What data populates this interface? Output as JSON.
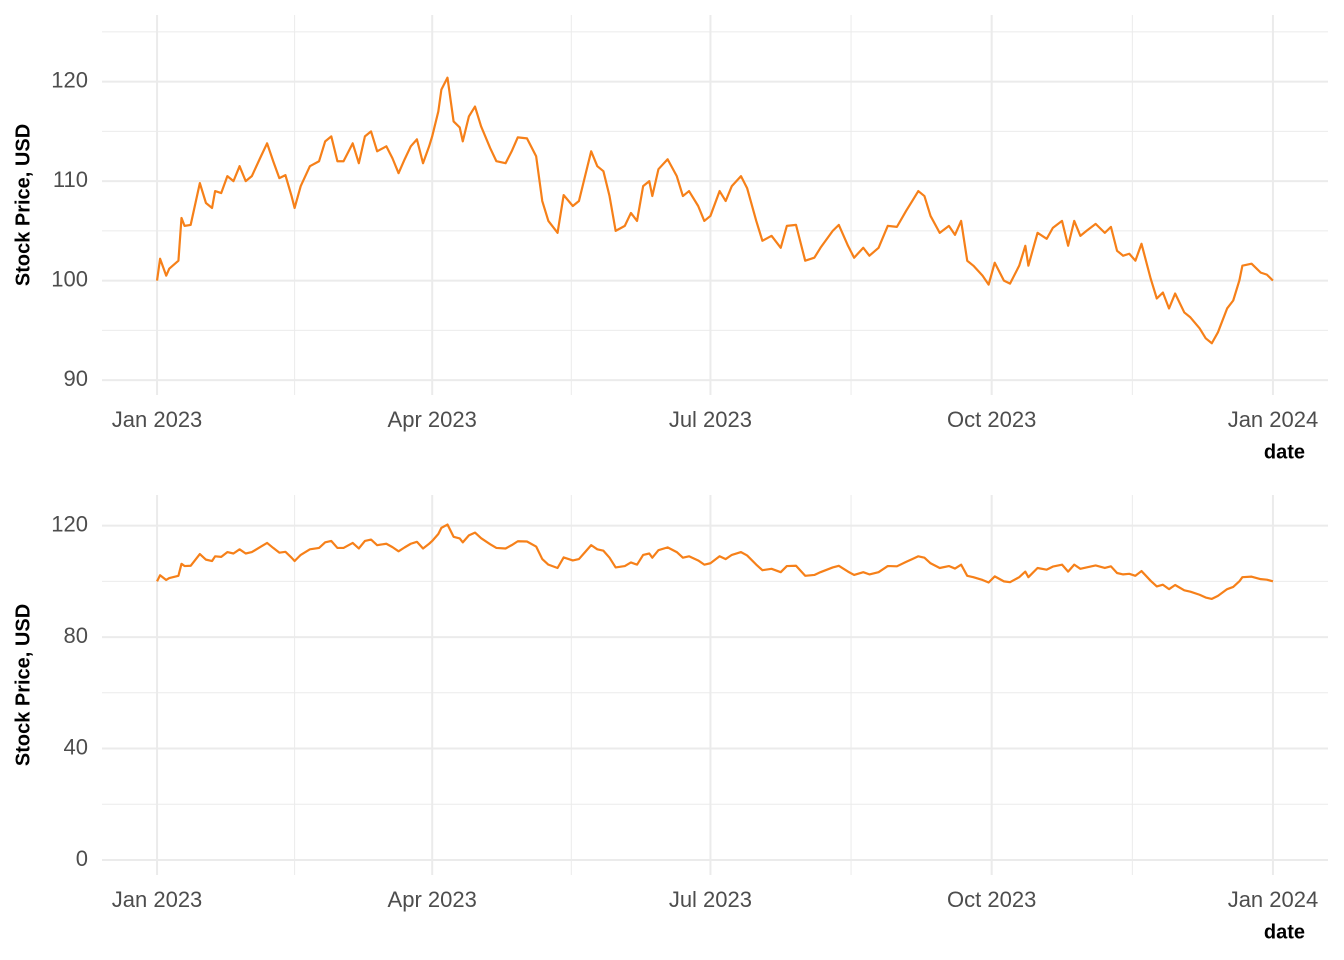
{
  "chart_data": [
    {
      "type": "line",
      "y_label": "Stock Price, USD",
      "x_label": "date",
      "x": [
        0,
        1,
        3,
        4,
        7,
        8,
        9,
        11,
        14,
        16,
        18,
        19,
        21,
        23,
        25,
        27,
        29,
        31,
        34,
        36,
        38,
        40,
        42,
        44,
        45,
        47,
        50,
        53,
        55,
        57,
        59,
        61,
        64,
        66,
        68,
        70,
        72,
        75,
        77,
        79,
        81,
        83,
        85,
        87,
        89,
        90,
        92,
        93,
        95,
        97,
        99,
        100,
        102,
        104,
        106,
        109,
        111,
        114,
        116,
        118,
        121,
        124,
        126,
        128,
        131,
        133,
        136,
        138,
        140,
        142,
        144,
        146,
        148,
        150,
        153,
        155,
        157,
        159,
        161,
        162,
        164,
        167,
        170,
        172,
        174,
        177,
        179,
        181,
        184,
        186,
        188,
        191,
        193,
        196,
        198,
        201,
        204,
        206,
        209,
        212,
        215,
        217,
        221,
        223,
        226,
        228,
        231,
        233,
        236,
        239,
        242,
        245,
        247,
        249,
        251,
        253,
        256,
        259,
        261,
        263,
        265,
        267,
        270,
        272,
        274,
        277,
        279,
        282,
        284,
        285,
        288,
        291,
        293,
        296,
        298,
        300,
        302,
        304,
        307,
        310,
        312,
        314,
        316,
        318,
        320,
        322,
        325,
        327,
        329,
        331,
        333,
        336,
        338,
        341,
        343,
        345,
        347,
        350,
        352,
        354,
        355,
        358,
        361,
        363,
        365
      ],
      "series": [
        {
          "name": "Stock Price",
          "color": "#f68019",
          "values": [
            100,
            102.2,
            100.5,
            101.2,
            102,
            106.3,
            105.5,
            105.6,
            109.8,
            107.8,
            107.3,
            109,
            108.8,
            110.5,
            110,
            111.5,
            110,
            110.5,
            112.5,
            113.8,
            112,
            110.3,
            110.6,
            108.5,
            107.3,
            109.5,
            111.5,
            112,
            114,
            114.5,
            112,
            112,
            113.8,
            111.8,
            114.5,
            115,
            113,
            113.5,
            112.3,
            110.8,
            112.2,
            113.5,
            114.2,
            111.8,
            113.5,
            114.5,
            117,
            119.2,
            120.4,
            116,
            115.4,
            114,
            116.5,
            117.5,
            115.5,
            113.3,
            112,
            111.8,
            113,
            114.4,
            114.3,
            112.5,
            108,
            106,
            104.8,
            108.6,
            107.5,
            108,
            110.5,
            113,
            111.5,
            111,
            108.5,
            105,
            105.5,
            106.8,
            106,
            109.5,
            110,
            108.5,
            111.2,
            112.2,
            110.5,
            108.5,
            109,
            107.5,
            106,
            106.5,
            109,
            108,
            109.5,
            110.5,
            109.3,
            106,
            104,
            104.5,
            103.3,
            105.5,
            105.6,
            102,
            102.3,
            103.3,
            105,
            105.6,
            103.5,
            102.3,
            103.3,
            102.5,
            103.3,
            105.5,
            105.4,
            107,
            108,
            109,
            108.5,
            106.5,
            104.8,
            105.5,
            104.6,
            106,
            102,
            101.5,
            100.5,
            99.6,
            101.8,
            100,
            99.7,
            101.5,
            103.5,
            101.5,
            104.8,
            104.2,
            105.3,
            106,
            103.5,
            106,
            104.5,
            105,
            105.7,
            104.8,
            105.4,
            103,
            102.5,
            102.7,
            102,
            103.7,
            100.2,
            98.2,
            98.8,
            97.2,
            98.7,
            96.8,
            96.3,
            95.2,
            94.2,
            93.7,
            94.8,
            97.2,
            98,
            100,
            101.5,
            101.7,
            100.8,
            100.6,
            100
          ]
        }
      ],
      "xlim": [
        -18,
        383
      ],
      "xticks": [
        {
          "value": 0,
          "label": "Jan 2023"
        },
        {
          "value": 90,
          "label": "Apr 2023"
        },
        {
          "value": 181,
          "label": "Jul 2023"
        },
        {
          "value": 273,
          "label": "Oct 2023"
        },
        {
          "value": 365,
          "label": "Jan 2024"
        }
      ],
      "ylim": [
        88.5,
        126.7
      ],
      "yticks": [
        90,
        100,
        110,
        120
      ],
      "grid": true
    },
    {
      "type": "line",
      "y_label": "Stock Price, USD",
      "x_label": "date",
      "x": [
        0,
        1,
        3,
        4,
        7,
        8,
        9,
        11,
        14,
        16,
        18,
        19,
        21,
        23,
        25,
        27,
        29,
        31,
        34,
        36,
        38,
        40,
        42,
        44,
        45,
        47,
        50,
        53,
        55,
        57,
        59,
        61,
        64,
        66,
        68,
        70,
        72,
        75,
        77,
        79,
        81,
        83,
        85,
        87,
        89,
        90,
        92,
        93,
        95,
        97,
        99,
        100,
        102,
        104,
        106,
        109,
        111,
        114,
        116,
        118,
        121,
        124,
        126,
        128,
        131,
        133,
        136,
        138,
        140,
        142,
        144,
        146,
        148,
        150,
        153,
        155,
        157,
        159,
        161,
        162,
        164,
        167,
        170,
        172,
        174,
        177,
        179,
        181,
        184,
        186,
        188,
        191,
        193,
        196,
        198,
        201,
        204,
        206,
        209,
        212,
        215,
        217,
        221,
        223,
        226,
        228,
        231,
        233,
        236,
        239,
        242,
        245,
        247,
        249,
        251,
        253,
        256,
        259,
        261,
        263,
        265,
        267,
        270,
        272,
        274,
        277,
        279,
        282,
        284,
        285,
        288,
        291,
        293,
        296,
        298,
        300,
        302,
        304,
        307,
        310,
        312,
        314,
        316,
        318,
        320,
        322,
        325,
        327,
        329,
        331,
        333,
        336,
        338,
        341,
        343,
        345,
        347,
        350,
        352,
        354,
        355,
        358,
        361,
        363,
        365
      ],
      "series": [
        {
          "name": "Stock Price",
          "color": "#f68019",
          "values": [
            100,
            102.2,
            100.5,
            101.2,
            102,
            106.3,
            105.5,
            105.6,
            109.8,
            107.8,
            107.3,
            109,
            108.8,
            110.5,
            110,
            111.5,
            110,
            110.5,
            112.5,
            113.8,
            112,
            110.3,
            110.6,
            108.5,
            107.3,
            109.5,
            111.5,
            112,
            114,
            114.5,
            112,
            112,
            113.8,
            111.8,
            114.5,
            115,
            113,
            113.5,
            112.3,
            110.8,
            112.2,
            113.5,
            114.2,
            111.8,
            113.5,
            114.5,
            117,
            119.2,
            120.4,
            116,
            115.4,
            114,
            116.5,
            117.5,
            115.5,
            113.3,
            112,
            111.8,
            113,
            114.4,
            114.3,
            112.5,
            108,
            106,
            104.8,
            108.6,
            107.5,
            108,
            110.5,
            113,
            111.5,
            111,
            108.5,
            105,
            105.5,
            106.8,
            106,
            109.5,
            110,
            108.5,
            111.2,
            112.2,
            110.5,
            108.5,
            109,
            107.5,
            106,
            106.5,
            109,
            108,
            109.5,
            110.5,
            109.3,
            106,
            104,
            104.5,
            103.3,
            105.5,
            105.6,
            102,
            102.3,
            103.3,
            105,
            105.6,
            103.5,
            102.3,
            103.3,
            102.5,
            103.3,
            105.5,
            105.4,
            107,
            108,
            109,
            108.5,
            106.5,
            104.8,
            105.5,
            104.6,
            106,
            102,
            101.5,
            100.5,
            99.6,
            101.8,
            100,
            99.7,
            101.5,
            103.5,
            101.5,
            104.8,
            104.2,
            105.3,
            106,
            103.5,
            106,
            104.5,
            105,
            105.7,
            104.8,
            105.4,
            103,
            102.5,
            102.7,
            102,
            103.7,
            100.2,
            98.2,
            98.8,
            97.2,
            98.7,
            96.8,
            96.3,
            95.2,
            94.2,
            93.7,
            94.8,
            97.2,
            98,
            100,
            101.5,
            101.7,
            100.8,
            100.6,
            100
          ]
        }
      ],
      "xlim": [
        -18,
        383
      ],
      "xticks": [
        {
          "value": 0,
          "label": "Jan 2023"
        },
        {
          "value": 90,
          "label": "Apr 2023"
        },
        {
          "value": 181,
          "label": "Jul 2023"
        },
        {
          "value": 273,
          "label": "Oct 2023"
        },
        {
          "value": 365,
          "label": "Jan 2024"
        }
      ],
      "ylim": [
        -5.4,
        131
      ],
      "yticks": [
        0,
        40,
        80,
        120
      ],
      "grid": true
    }
  ]
}
